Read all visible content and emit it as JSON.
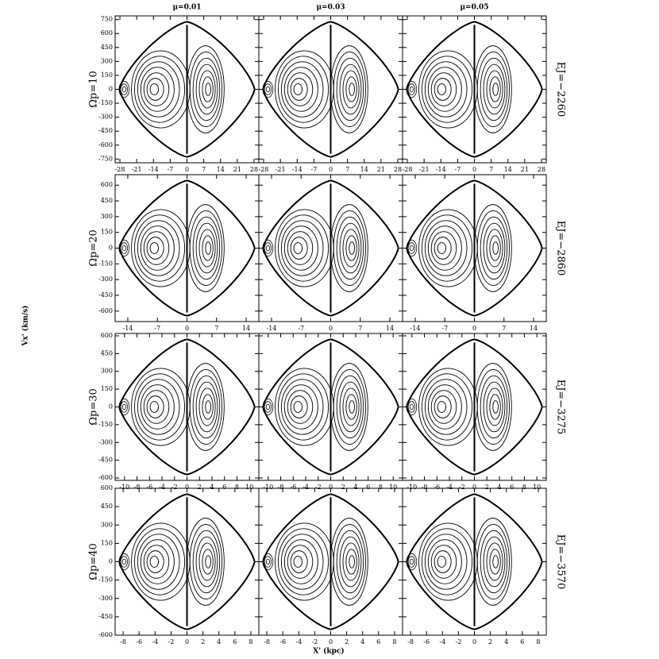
{
  "figure": {
    "columns": [
      "μ=0.01",
      "μ=0.03",
      "μ=0.05"
    ],
    "x_label": "X' (kpc)",
    "y_label": "Vx' (km/s)"
  },
  "chart_data": [
    {
      "type": "surface-of-section",
      "row_label": "Ωp=10",
      "energy_label": "EJ=−2260",
      "xlim": [
        -30,
        30
      ],
      "ylim": [
        -790,
        790
      ],
      "xticks": [
        -28,
        -21,
        -14,
        -7,
        0,
        7,
        14,
        21,
        28
      ],
      "yticks": [
        750,
        600,
        450,
        300,
        150,
        0,
        -150,
        -300,
        -450,
        -600,
        -750
      ]
    },
    {
      "type": "surface-of-section",
      "row_label": "Ωp=20",
      "energy_label": "EJ=−2860",
      "xlim": [
        -17,
        17
      ],
      "ylim": [
        -700,
        700
      ],
      "xticks": [
        -14,
        -7,
        0,
        7,
        14
      ],
      "yticks": [
        600,
        450,
        300,
        150,
        0,
        -150,
        -300,
        -450,
        -600
      ]
    },
    {
      "type": "surface-of-section",
      "row_label": "Ωp=30",
      "energy_label": "EJ=−3275",
      "xlim": [
        -11.5,
        11.5
      ],
      "ylim": [
        -620,
        620
      ],
      "xticks": [
        -10,
        -8,
        -6,
        -4,
        -2,
        0,
        2,
        4,
        6,
        8,
        10
      ],
      "yticks": [
        600,
        450,
        300,
        150,
        0,
        -150,
        -300,
        -450,
        -600
      ]
    },
    {
      "type": "surface-of-section",
      "row_label": "Ωp=40",
      "energy_label": "EJ=−3570",
      "xlim": [
        -9,
        9
      ],
      "ylim": [
        -600,
        600
      ],
      "xticks": [
        -8,
        -6,
        -4,
        -2,
        0,
        2,
        4,
        6,
        8
      ],
      "yticks": [
        600,
        450,
        300,
        150,
        0,
        -150,
        -300,
        -450,
        -600
      ]
    }
  ]
}
